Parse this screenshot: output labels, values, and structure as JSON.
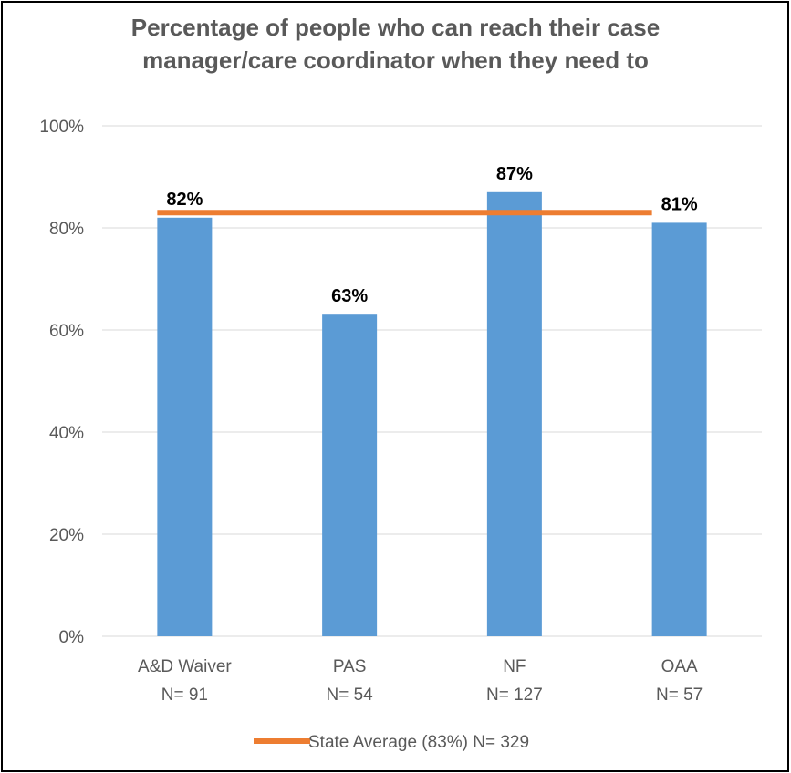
{
  "chart_data": {
    "type": "bar",
    "title_lines": [
      "Percentage of people who can reach their case",
      "manager/care coordinator when they need to"
    ],
    "categories": [
      {
        "name": "A&D Waiver",
        "n": "N= 91"
      },
      {
        "name": "PAS",
        "n": "N= 54"
      },
      {
        "name": "NF",
        "n": "N= 127"
      },
      {
        "name": "OAA",
        "n": "N= 57"
      }
    ],
    "values": [
      82,
      63,
      87,
      81
    ],
    "value_labels": [
      "82%",
      "63%",
      "87%",
      "81%"
    ],
    "ylim": [
      0,
      100
    ],
    "yticks": [
      0,
      20,
      40,
      60,
      80,
      100
    ],
    "ytick_labels": [
      "0%",
      "20%",
      "40%",
      "60%",
      "80%",
      "100%"
    ],
    "reference_line": {
      "value": 83,
      "label": "State Average (83%) N= 329"
    },
    "legend_position": "bottom",
    "grid": true,
    "colors": {
      "bar": "#5b9bd5",
      "line": "#ed7d31",
      "grid": "#d9d9d9",
      "axis_text": "#595959",
      "label_text": "#000000"
    }
  }
}
